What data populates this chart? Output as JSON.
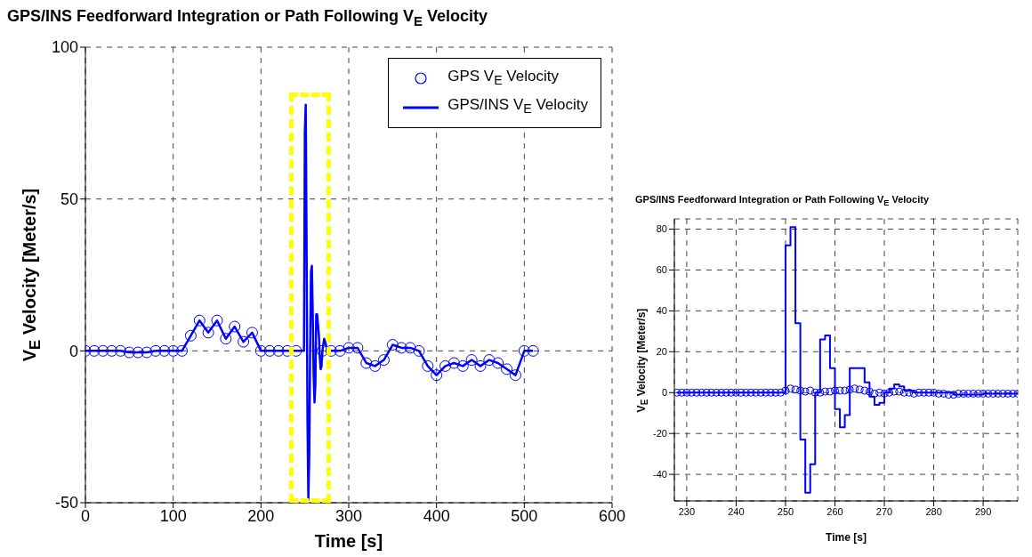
{
  "chart_data": [
    {
      "type": "scatter",
      "title": "GPS/INS Feedforward Integration or Path Following V$_{E}$ Velocity",
      "xlabel": "Time [s]",
      "ylabel": "V$_{E}$ Velocity [Meter/s]",
      "xlim": [
        0,
        600
      ],
      "ylim": [
        -50,
        100
      ],
      "xticks": [
        0,
        100,
        200,
        300,
        400,
        500,
        600
      ],
      "yticks": [
        -50,
        0,
        50,
        100
      ],
      "grid": true,
      "legend": "top right",
      "series": [
        {
          "name": "GPS V$_{E}$ Velocity",
          "marker": "circle",
          "color": "#0000ff",
          "x": [
            0,
            10,
            20,
            30,
            40,
            50,
            60,
            70,
            80,
            90,
            100,
            110,
            120,
            130,
            140,
            150,
            160,
            170,
            180,
            190,
            200,
            210,
            220,
            230,
            240,
            250,
            260,
            270,
            280,
            290,
            300,
            310,
            320,
            330,
            340,
            350,
            360,
            370,
            380,
            390,
            400,
            410,
            420,
            430,
            440,
            450,
            460,
            470,
            480,
            490,
            500,
            510
          ],
          "values": [
            0,
            0,
            0,
            0,
            0,
            -0.5,
            -0.5,
            -0.5,
            0,
            0,
            0,
            0,
            5,
            10,
            6,
            10,
            4,
            8,
            3,
            6,
            0,
            0,
            0,
            0,
            0,
            null,
            null,
            0,
            0,
            0,
            1,
            1,
            -4,
            -5,
            -3,
            2,
            1,
            1,
            0,
            -5,
            -8,
            -5,
            -4,
            -5,
            -3,
            -5,
            -3,
            -4,
            -6,
            -8,
            0,
            0
          ]
        },
        {
          "name": "GPS/INS V$_{E}$ Velocity",
          "type": "line",
          "color": "#0000ff",
          "x": [
            0,
            10,
            20,
            30,
            40,
            50,
            60,
            70,
            80,
            90,
            100,
            110,
            120,
            130,
            140,
            150,
            160,
            170,
            180,
            190,
            200,
            210,
            220,
            230,
            240,
            249,
            250,
            251,
            252,
            253,
            254,
            255,
            256,
            257,
            258,
            259,
            260,
            261,
            262,
            263,
            264,
            266,
            267,
            268,
            269,
            270,
            272,
            275,
            280,
            290,
            300,
            310,
            320,
            330,
            340,
            350,
            360,
            370,
            380,
            390,
            400,
            410,
            420,
            430,
            440,
            450,
            460,
            470,
            480,
            490,
            500,
            510
          ],
          "values": [
            0,
            0,
            0,
            0,
            0,
            -0.5,
            -0.5,
            -0.5,
            0,
            0,
            0,
            0,
            5,
            10,
            6,
            10,
            4,
            8,
            3,
            6,
            0,
            0,
            0,
            0,
            0,
            0,
            72,
            81,
            34,
            -23,
            -49,
            -35,
            0,
            26,
            28,
            12,
            -8,
            -17,
            -11,
            12,
            12,
            5,
            -2,
            -6,
            -5,
            0,
            4,
            1,
            0,
            0,
            1,
            1,
            -4,
            -5,
            -3,
            2,
            1,
            1,
            0,
            -5,
            -8,
            -5,
            -4,
            -5,
            -3,
            -5,
            -3,
            -4,
            -6,
            -8,
            0,
            0
          ]
        }
      ]
    },
    {
      "type": "scatter",
      "title": "GPS/INS Feedforward Integration or Path Following V$_{E}$ Velocity",
      "xlabel": "Time [s]",
      "ylabel": "V$_{E}$ Velocity [Meter/s]",
      "xlim": [
        227.5,
        297
      ],
      "ylim": [
        -53,
        85
      ],
      "xticks": [
        230,
        240,
        250,
        260,
        270,
        280,
        290
      ],
      "yticks": [
        -40,
        -20,
        0,
        20,
        40,
        60,
        80
      ],
      "grid": true,
      "series": [
        {
          "marker": "circle",
          "color": "#0000ff",
          "x": [
            228,
            229,
            230,
            231,
            232,
            233,
            234,
            235,
            236,
            237,
            238,
            239,
            240,
            241,
            242,
            243,
            244,
            245,
            246,
            247,
            248,
            249,
            250,
            251,
            252,
            253,
            254,
            255,
            256,
            257,
            258,
            259,
            260,
            261,
            262,
            263,
            264,
            265,
            266,
            267,
            268,
            269,
            270,
            271,
            272,
            273,
            274,
            275,
            276,
            277,
            278,
            279,
            280,
            281,
            282,
            283,
            284,
            285,
            286,
            287,
            288,
            289,
            290,
            291,
            292,
            293,
            294,
            295,
            296,
            297
          ],
          "values": [
            0,
            0,
            0,
            0,
            0,
            0,
            0,
            0,
            0,
            0,
            0,
            0,
            0,
            0,
            0,
            0,
            0,
            0,
            0,
            0,
            0,
            0,
            1,
            2,
            1.5,
            1,
            0.5,
            1,
            0,
            0,
            0.5,
            0.5,
            1,
            1,
            1,
            1.5,
            2,
            1.5,
            1,
            0.5,
            -0.5,
            0,
            -0.5,
            0,
            0.5,
            0.5,
            0,
            0,
            -0.5,
            0,
            0,
            0,
            0,
            -0.5,
            -0.5,
            -1,
            -1,
            -0.5,
            -0.5,
            -0.5,
            -0.5,
            -0.5,
            -0.5,
            -0.5,
            -0.5,
            -0.5,
            -0.5,
            -0.5,
            -0.5,
            -0.5
          ]
        },
        {
          "type": "step",
          "color": "#0000ff",
          "x": [
            228,
            250,
            251,
            252,
            253,
            254,
            255,
            256,
            257,
            258,
            259,
            260,
            261,
            262,
            263,
            264,
            266,
            267,
            268,
            269,
            270,
            271,
            272,
            273,
            274,
            276,
            280,
            284,
            290,
            297
          ],
          "values": [
            0,
            72,
            81,
            34,
            -23,
            -49,
            -35,
            0,
            26,
            28,
            12,
            -8,
            -17,
            -11,
            12,
            12,
            5,
            -2,
            -6,
            -5,
            0,
            2,
            4,
            3,
            1,
            0,
            0,
            -1,
            -0.5,
            -0.5
          ]
        }
      ]
    }
  ]
}
